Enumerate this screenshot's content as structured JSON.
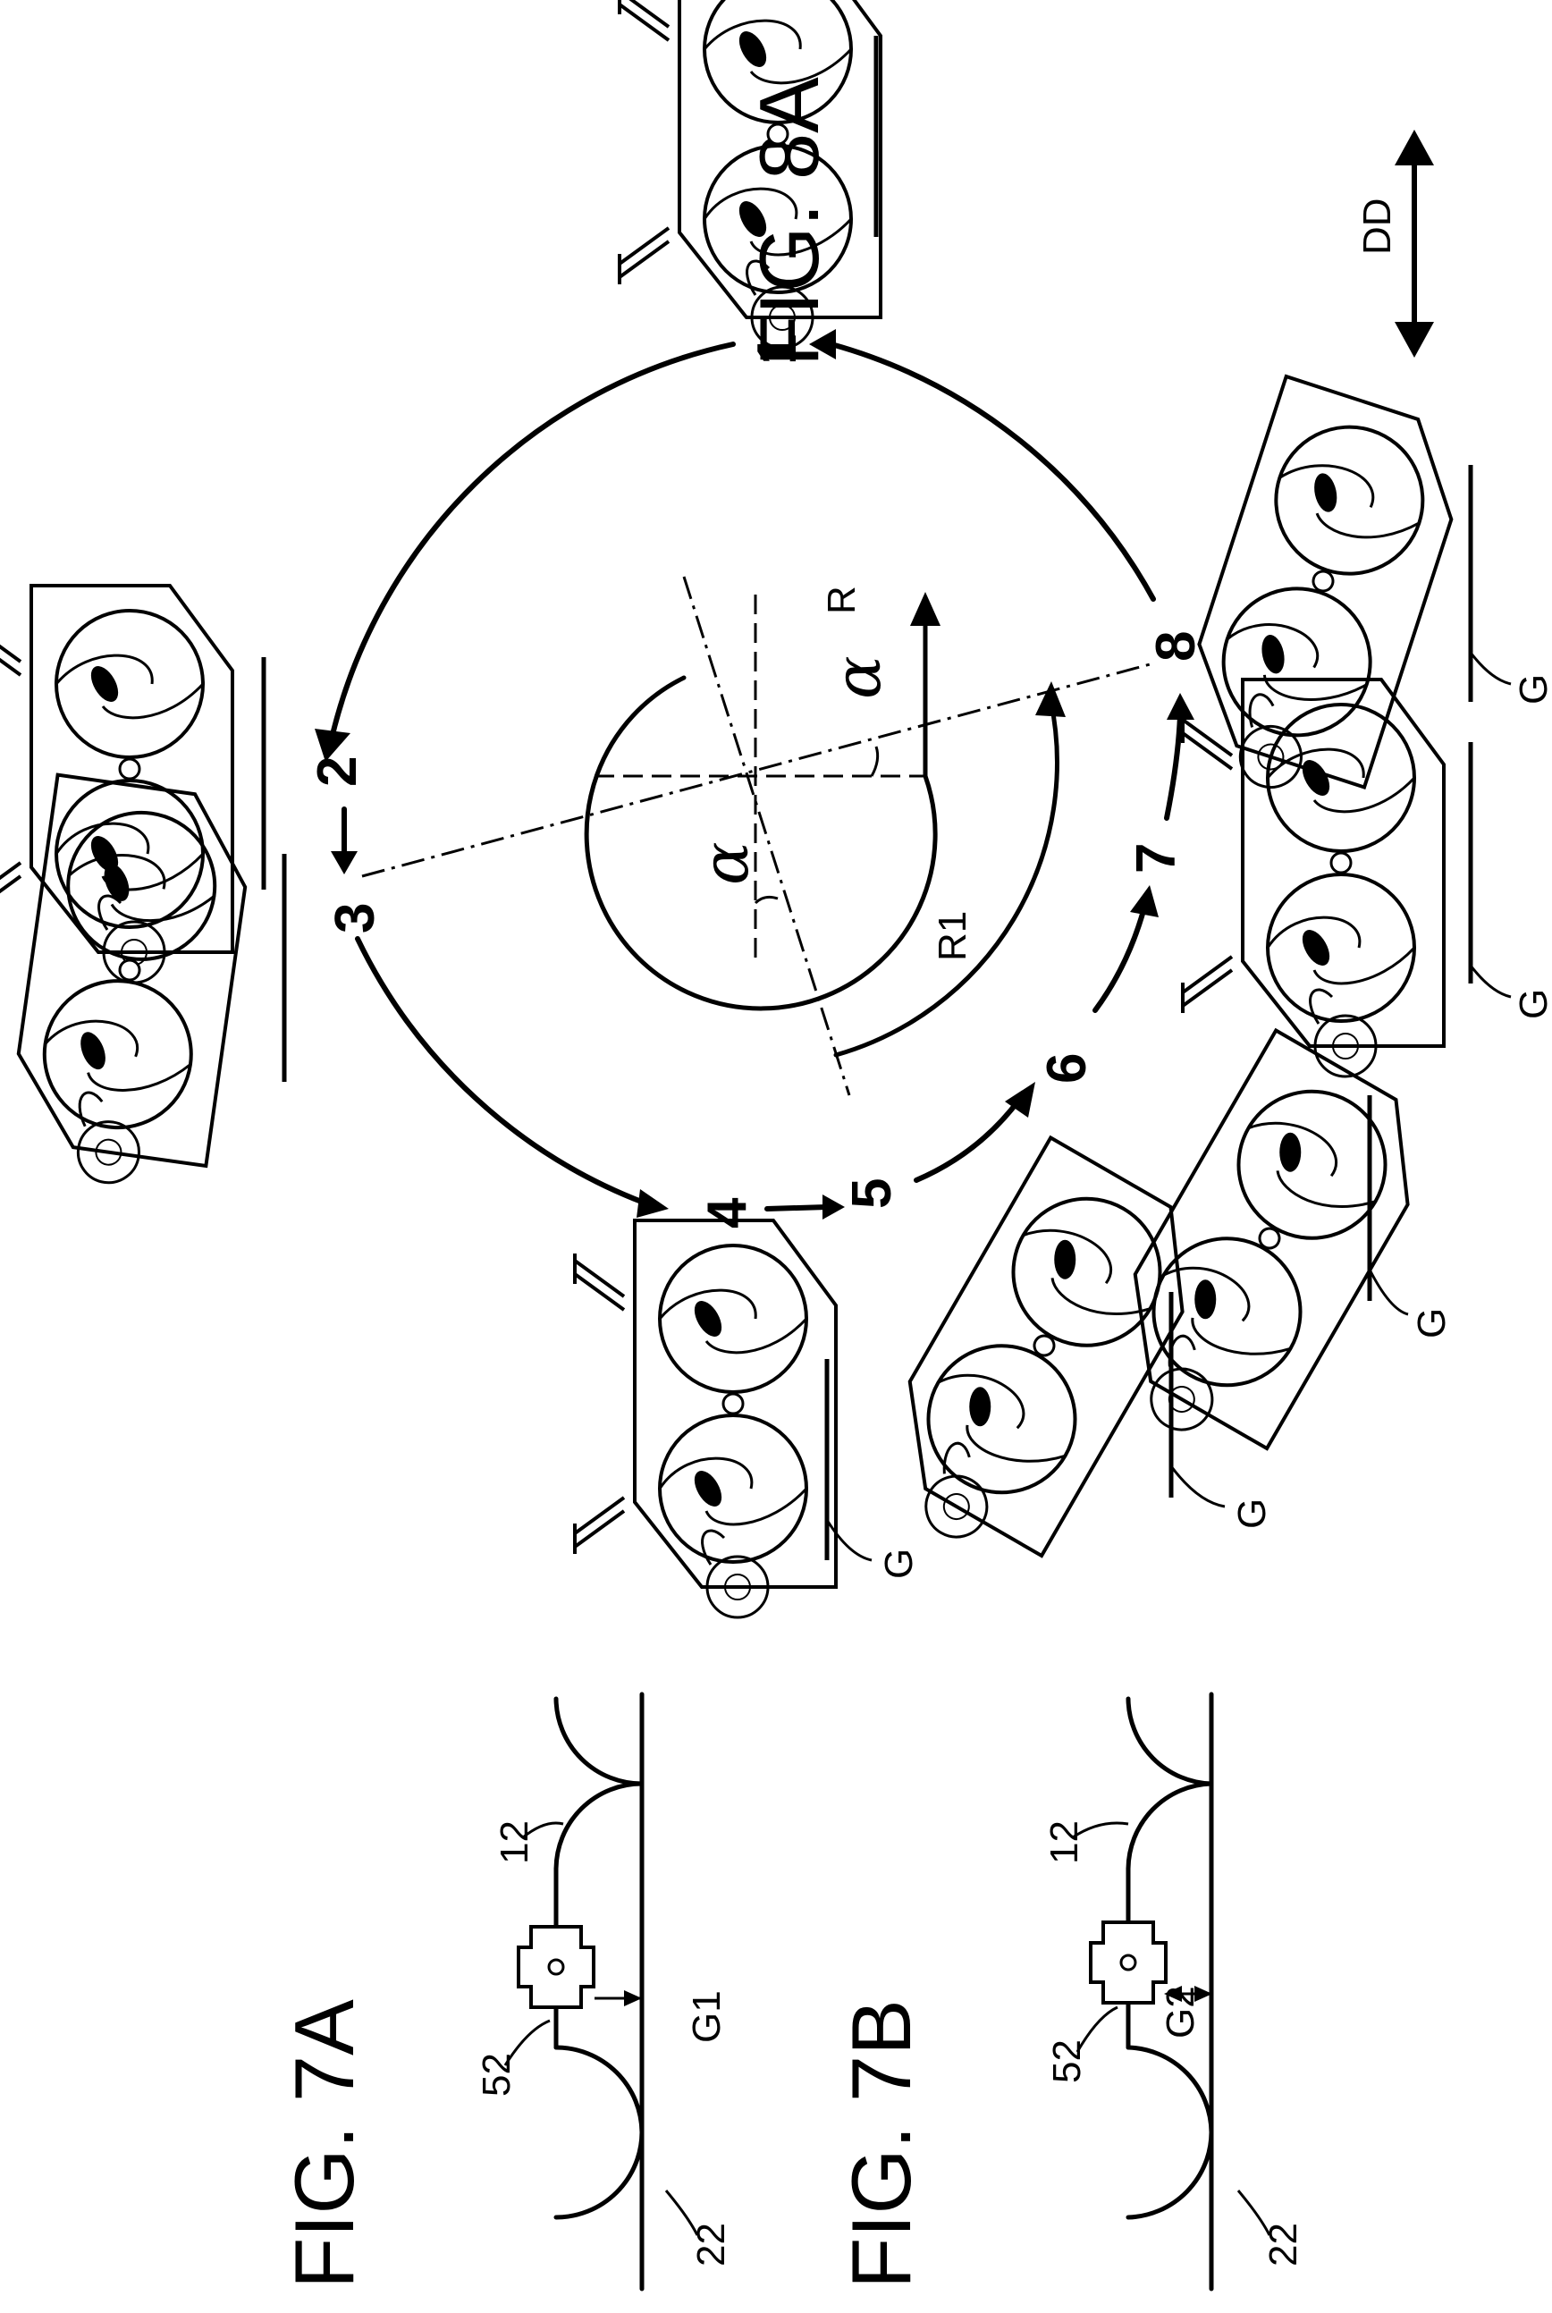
{
  "figures": {
    "fig8a": {
      "title": "FIG. 8A",
      "steps": [
        "1",
        "2",
        "3",
        "4",
        "5",
        "6",
        "7",
        "8"
      ],
      "labels": {
        "r": "R",
        "r1": "R1",
        "alpha_left": "α",
        "alpha_right": "α",
        "dd": "DD"
      },
      "ground_label": "G"
    },
    "fig7a": {
      "title": "FIG. 7A",
      "refs": {
        "device": "52",
        "wall_right": "12",
        "wall_left": "22",
        "gap": "G1"
      }
    },
    "fig7b": {
      "title": "FIG. 7B",
      "refs": {
        "device": "52",
        "wall_right": "12",
        "wall_left": "22",
        "gap": "G2"
      }
    }
  }
}
